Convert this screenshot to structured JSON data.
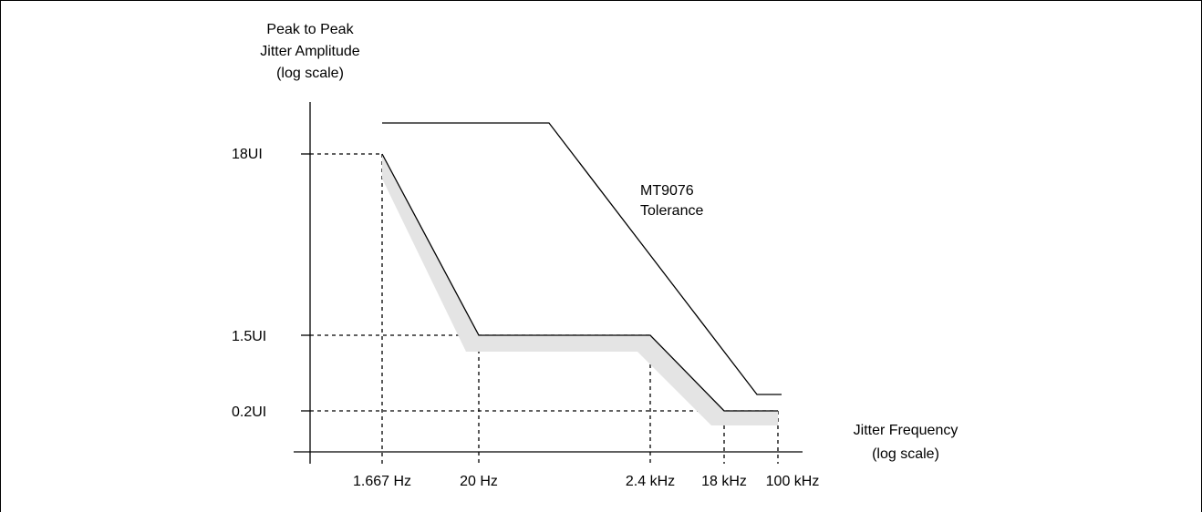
{
  "chart_data": {
    "type": "line",
    "y_axis_title": [
      "Peak to Peak",
      "Jitter Amplitude",
      "(log scale)"
    ],
    "x_axis_title": [
      "Jitter Frequency",
      "(log scale)"
    ],
    "x_ticks": [
      "1.667 Hz",
      "20 Hz",
      "2.4 kHz",
      "18 kHz",
      "100 kHz"
    ],
    "y_ticks": [
      "18UI",
      "1.5UI",
      "0.2UI"
    ],
    "series": [
      {
        "label": "",
        "points": [
          {
            "x": "1.667 Hz",
            "y": "18UI"
          },
          {
            "x": "20 Hz",
            "y": "1.5UI"
          },
          {
            "x": "2.4 kHz",
            "y": "1.5UI"
          },
          {
            "x": "18 kHz",
            "y": "0.2UI"
          },
          {
            "x": "100 kHz",
            "y": "0.2UI"
          }
        ]
      },
      {
        "label": [
          "MT9076",
          "Tolerance"
        ]
      }
    ]
  }
}
